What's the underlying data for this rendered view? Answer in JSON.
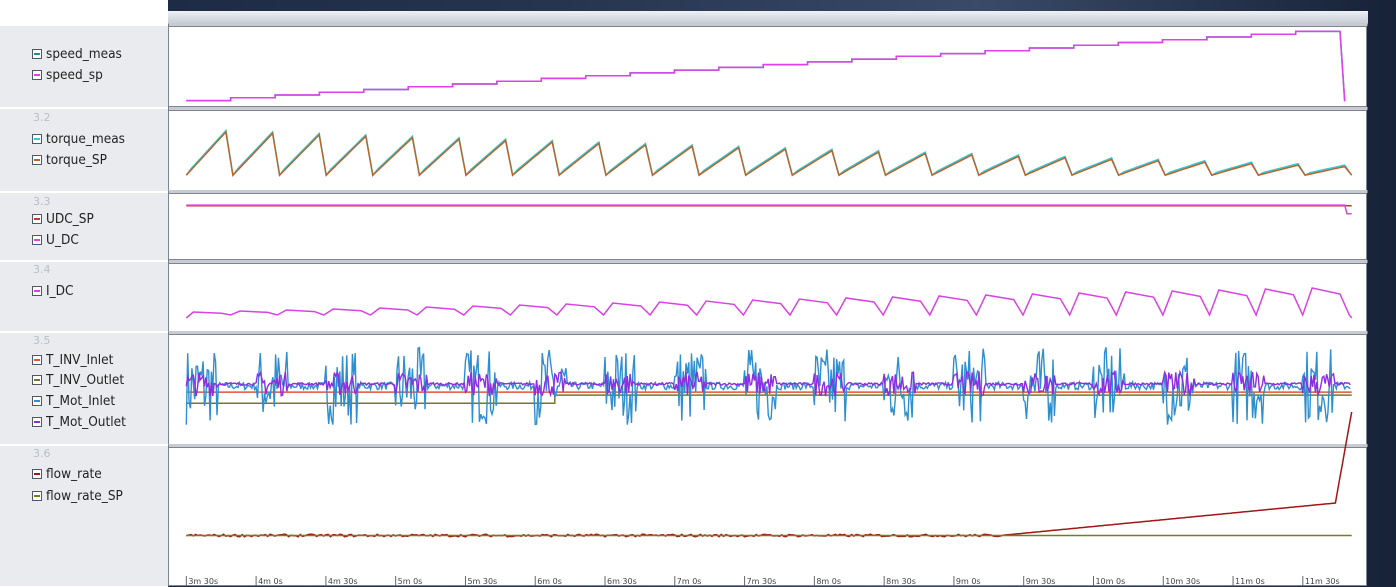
{
  "chart_data": {
    "type": "line",
    "x_unit": "seconds",
    "x_range": [
      209,
      712
    ],
    "x_ticks": [
      "3m 30s",
      "4m 0s",
      "4m 30s",
      "5m 0s",
      "5m 30s",
      "6m 0s",
      "6m 30s",
      "7m 0s",
      "7m 30s",
      "8m 0s",
      "8m 30s",
      "9m 0s",
      "9m 30s",
      "10m 0s",
      "10m 30s",
      "11m 0s",
      "11m 30s"
    ],
    "grid": false,
    "legend_placement": "left",
    "panels": [
      {
        "group_label": "",
        "series": [
          {
            "name": "speed_meas",
            "color": "#1f8f96",
            "pattern": "staircase_ramp",
            "start": 0.02,
            "end": 0.98,
            "steps": 26,
            "drop_at": 706
          },
          {
            "name": "speed_sp",
            "color": "#e040ea",
            "pattern": "staircase_ramp",
            "start": 0.02,
            "end": 0.98,
            "steps": 26,
            "drop_at": 706
          }
        ]
      },
      {
        "group_label": "3.2",
        "series": [
          {
            "name": "torque_meas",
            "color": "#37c6d6",
            "pattern": "sawtooth",
            "cycles": 25,
            "amp_start": 0.6,
            "amp_end": 0.12,
            "base": 0.15
          },
          {
            "name": "torque_SP",
            "color": "#b8652a",
            "pattern": "sawtooth",
            "cycles": 25,
            "amp_start": 0.6,
            "amp_end": 0.12,
            "base": 0.15
          }
        ]
      },
      {
        "group_label": "3.3",
        "series": [
          {
            "name": "UDC_SP",
            "color": "#c0392b",
            "pattern": "flat",
            "level": 0.85
          },
          {
            "name": "U_DC",
            "color": "#e040ea",
            "pattern": "flat",
            "level": 0.86,
            "drop_at": 708
          }
        ]
      },
      {
        "group_label": "3.4",
        "series": [
          {
            "name": "I_DC",
            "color": "#d943e4",
            "pattern": "stepped_pulses",
            "cycles": 25,
            "amp_start": 0.1,
            "amp_end": 0.5,
            "base": 0.15
          }
        ]
      },
      {
        "group_label": "3.5",
        "series": [
          {
            "name": "T_INV_Inlet",
            "color": "#e5503a",
            "pattern": "flat_steps",
            "levels": [
              0.47,
              0.47
            ]
          },
          {
            "name": "T_INV_Outlet",
            "color": "#7d7526",
            "pattern": "flat_steps",
            "levels": [
              0.36,
              0.44
            ]
          },
          {
            "name": "T_Mot_Inlet",
            "color": "#2d8fd0",
            "pattern": "noisy_bursts",
            "center": 0.53,
            "noise": 0.38
          },
          {
            "name": "T_Mot_Outlet",
            "color": "#8d2ce0",
            "pattern": "noisy_bursts",
            "center": 0.55,
            "noise": 0.12
          }
        ]
      },
      {
        "group_label": "3.6",
        "series": [
          {
            "name": "flow_rate",
            "color": "#a11616",
            "pattern": "flat_then_decline",
            "level": 0.35,
            "decline_start": 560,
            "end_level": 0.6
          },
          {
            "name": "flow_rate_SP",
            "color": "#7a7a1a",
            "pattern": "flat",
            "level": 0.35
          }
        ]
      }
    ]
  }
}
